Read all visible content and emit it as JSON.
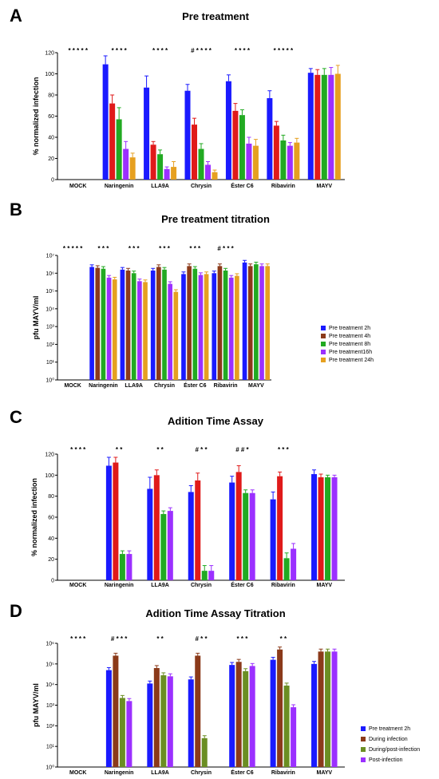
{
  "chart_data": [
    {
      "panel": "A",
      "type": "bar",
      "title": "Pre treatment",
      "ylabel": "% normalized infection",
      "scale": "linear",
      "ylim": [
        0,
        120
      ],
      "yticks": [
        "0",
        "20",
        "40",
        "60",
        "80",
        "100",
        "120"
      ],
      "categories": [
        "MOCK",
        "Naringenin",
        "LLA9A",
        "Chrysin",
        "Éster C6",
        "Ribavirin",
        "MAYV"
      ],
      "series": [
        {
          "color": "#1a1aff",
          "values": [
            0,
            109,
            87,
            84,
            93,
            77,
            101
          ],
          "errors": [
            0,
            8,
            11,
            6,
            6,
            7,
            4
          ]
        },
        {
          "color": "#e01a1a",
          "values": [
            0,
            72,
            33,
            52,
            65,
            51,
            99
          ],
          "errors": [
            0,
            8,
            3,
            6,
            7,
            4,
            5
          ]
        },
        {
          "color": "#22aa22",
          "values": [
            0,
            57,
            24,
            29,
            61,
            37,
            99
          ],
          "errors": [
            0,
            11,
            4,
            5,
            5,
            5,
            6
          ]
        },
        {
          "color": "#9b30ff",
          "values": [
            0,
            29,
            10,
            14,
            34,
            32,
            99
          ],
          "errors": [
            0,
            7,
            2,
            3,
            6,
            3,
            7
          ]
        },
        {
          "color": "#e6a020",
          "values": [
            0,
            21,
            12,
            7,
            32,
            35,
            100
          ],
          "errors": [
            0,
            4,
            5,
            2,
            6,
            4,
            8
          ]
        }
      ],
      "significance": [
        {
          "category": "MOCK",
          "marks": "* * * * *"
        },
        {
          "category": "Naringenin",
          "marks": "* * * *"
        },
        {
          "category": "LLA9A",
          "marks": "* * * *"
        },
        {
          "category": "Chrysin",
          "marks": "# * * * *"
        },
        {
          "category": "Éster C6",
          "marks": "* * * *"
        },
        {
          "category": "Ribavirin",
          "marks": "* * * * *"
        }
      ]
    },
    {
      "panel": "B",
      "type": "bar",
      "title": "Pre treatment titration",
      "ylabel": "pfu MAYV/ml",
      "scale": "log",
      "ylim_exp": [
        0,
        7
      ],
      "yticks": [
        "10⁰",
        "10¹",
        "10²",
        "10³",
        "10⁴",
        "10⁵",
        "10⁶",
        "10⁷"
      ],
      "categories": [
        "MOCK",
        "Naringenin",
        "LLA9A",
        "Chrysin",
        "Éster C6",
        "Ribavirin",
        "MAYV"
      ],
      "legend": [
        "Pre treatment 2h",
        "Pre treatment 4h",
        "Pre treatment 8h",
        "Pre treatment16h",
        "Pre treatment  24h"
      ],
      "series": [
        {
          "name": "Pre treatment 2h",
          "color": "#1a1aff",
          "log_values": [
            0,
            6.35,
            6.2,
            6.15,
            5.95,
            6.0,
            6.6
          ]
        },
        {
          "name": "Pre treatment 4h",
          "color": "#8b3a1a",
          "log_values": [
            0,
            6.3,
            6.15,
            6.35,
            6.4,
            6.4,
            6.4
          ]
        },
        {
          "name": "Pre treatment 8h",
          "color": "#22aa22",
          "log_values": [
            0,
            6.25,
            6.0,
            6.2,
            6.25,
            6.15,
            6.5
          ]
        },
        {
          "name": "Pre treatment16h",
          "color": "#9b30ff",
          "log_values": [
            0,
            5.75,
            5.55,
            5.4,
            5.9,
            5.75,
            6.4
          ]
        },
        {
          "name": "Pre treatment  24h",
          "color": "#e6a020",
          "log_values": [
            0,
            5.65,
            5.5,
            4.95,
            5.95,
            5.85,
            6.4
          ]
        }
      ],
      "significance": [
        {
          "category": "MOCK",
          "marks": "* * * * *"
        },
        {
          "category": "Naringenin",
          "marks": "* * *"
        },
        {
          "category": "LLA9A",
          "marks": "* * *"
        },
        {
          "category": "Chrysin",
          "marks": "* * *"
        },
        {
          "category": "Éster C6",
          "marks": "* * *"
        },
        {
          "category": "Ribavirin",
          "marks": "# * * *"
        }
      ]
    },
    {
      "panel": "C",
      "type": "bar",
      "title": "Adition Time Assay",
      "ylabel": "% normalized infection",
      "scale": "linear",
      "ylim": [
        0,
        120
      ],
      "yticks": [
        "0",
        "20",
        "40",
        "60",
        "80",
        "100",
        "120"
      ],
      "categories": [
        "MOCK",
        "Naringenin",
        "LLA9A",
        "Chrysin",
        "Éster C6",
        "Ribavirin",
        "MAYV"
      ],
      "series": [
        {
          "color": "#1a1aff",
          "values": [
            0,
            109,
            87,
            84,
            93,
            77,
            101
          ],
          "errors": [
            0,
            8,
            11,
            6,
            6,
            7,
            4
          ]
        },
        {
          "color": "#e01a1a",
          "values": [
            0,
            112,
            100,
            95,
            103,
            99,
            98
          ],
          "errors": [
            0,
            5,
            5,
            7,
            6,
            4,
            3
          ]
        },
        {
          "color": "#22aa22",
          "values": [
            0,
            25,
            63,
            9,
            83,
            21,
            98
          ],
          "errors": [
            0,
            3,
            3,
            5,
            3,
            5,
            2
          ]
        },
        {
          "color": "#9b30ff",
          "values": [
            0,
            25,
            66,
            9,
            83,
            30,
            98
          ],
          "errors": [
            0,
            3,
            3,
            5,
            3,
            5,
            2
          ]
        }
      ],
      "significance": [
        {
          "category": "MOCK",
          "marks": "* * * *"
        },
        {
          "category": "Naringenin",
          "marks": "* *"
        },
        {
          "category": "LLA9A",
          "marks": "* *"
        },
        {
          "category": "Chrysin",
          "marks": "# * *"
        },
        {
          "category": "Éster C6",
          "marks": "# # *"
        },
        {
          "category": "Ribavirin",
          "marks": "* * *"
        }
      ]
    },
    {
      "panel": "D",
      "type": "bar",
      "title": "Adition Time Assay Titration",
      "ylabel": "pfu MAYV/ml",
      "scale": "log",
      "ylim_exp": [
        0,
        6
      ],
      "yticks": [
        "10⁰",
        "10¹",
        "10²",
        "10³",
        "10⁴",
        "10⁵",
        "10⁶"
      ],
      "categories": [
        "MOCK",
        "Naringenin",
        "LLA9A",
        "Chrysin",
        "Éster C6",
        "Ribavirin",
        "MAYV"
      ],
      "legend": [
        "Pre treatment 2h",
        "During infection",
        "During/post-infection",
        "Post-infection"
      ],
      "series": [
        {
          "name": "Pre treatment 2h",
          "color": "#1a1aff",
          "log_values": [
            0,
            4.7,
            4.05,
            4.25,
            4.95,
            5.2,
            5.0
          ]
        },
        {
          "name": "During infection",
          "color": "#8b3a1a",
          "log_values": [
            0,
            5.4,
            4.8,
            5.4,
            5.1,
            5.7,
            5.6
          ]
        },
        {
          "name": "During/post-infection",
          "color": "#6b8e23",
          "log_values": [
            0,
            3.35,
            4.45,
            1.4,
            4.65,
            3.95,
            5.6
          ]
        },
        {
          "name": "Post-infection",
          "color": "#9b30ff",
          "log_values": [
            0,
            3.2,
            4.4,
            0,
            4.9,
            2.9,
            5.6
          ]
        }
      ],
      "significance": [
        {
          "category": "MOCK",
          "marks": "* * * *"
        },
        {
          "category": "Naringenin",
          "marks": "# * * *"
        },
        {
          "category": "LLA9A",
          "marks": "* *"
        },
        {
          "category": "Chrysin",
          "marks": "# * *"
        },
        {
          "category": "Éster C6",
          "marks": "* * *"
        },
        {
          "category": "Ribavirin",
          "marks": "* *"
        }
      ]
    }
  ]
}
